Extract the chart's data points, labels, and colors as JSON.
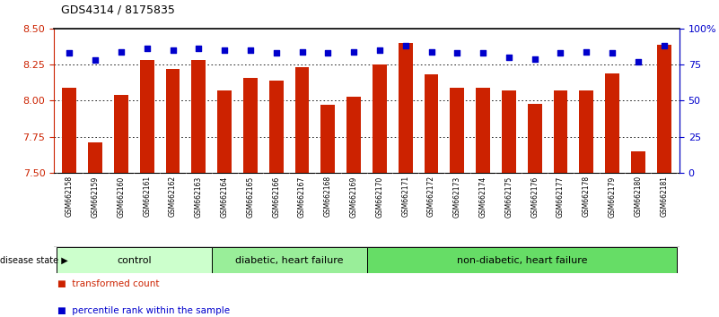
{
  "title": "GDS4314 / 8175835",
  "samples": [
    "GSM662158",
    "GSM662159",
    "GSM662160",
    "GSM662161",
    "GSM662162",
    "GSM662163",
    "GSM662164",
    "GSM662165",
    "GSM662166",
    "GSM662167",
    "GSM662168",
    "GSM662169",
    "GSM662170",
    "GSM662171",
    "GSM662172",
    "GSM662173",
    "GSM662174",
    "GSM662175",
    "GSM662176",
    "GSM662177",
    "GSM662178",
    "GSM662179",
    "GSM662180",
    "GSM662181"
  ],
  "bar_values": [
    8.09,
    7.71,
    8.04,
    8.28,
    8.22,
    8.28,
    8.07,
    8.16,
    8.14,
    8.23,
    7.97,
    8.03,
    8.25,
    8.4,
    8.18,
    8.09,
    8.09,
    8.07,
    7.98,
    8.07,
    8.07,
    8.19,
    7.65,
    8.39
  ],
  "percentile_values": [
    83,
    78,
    84,
    86,
    85,
    86,
    85,
    85,
    83,
    84,
    83,
    84,
    85,
    88,
    84,
    83,
    83,
    80,
    79,
    83,
    84,
    83,
    77,
    88
  ],
  "bar_color": "#cc2200",
  "percentile_color": "#0000cc",
  "ylim_left": [
    7.5,
    8.5
  ],
  "ylim_right": [
    0,
    100
  ],
  "yticks_left": [
    7.5,
    7.75,
    8.0,
    8.25,
    8.5
  ],
  "yticks_right": [
    0,
    25,
    50,
    75,
    100
  ],
  "ytick_labels_right": [
    "0",
    "25",
    "50",
    "75",
    "100%"
  ],
  "grid_values": [
    7.75,
    8.0,
    8.25
  ],
  "groups": [
    {
      "label": "control",
      "start": 0,
      "end": 5,
      "color": "#ccffcc"
    },
    {
      "label": "diabetic, heart failure",
      "start": 6,
      "end": 11,
      "color": "#99ee99"
    },
    {
      "label": "non-diabetic, heart failure",
      "start": 12,
      "end": 23,
      "color": "#66dd66"
    }
  ],
  "disease_state_label": "disease state",
  "legend": [
    {
      "label": "transformed count",
      "color": "#cc2200"
    },
    {
      "label": "percentile rank within the sample",
      "color": "#0000cc"
    }
  ],
  "bg_color": "#ffffff",
  "label_area_color": "#cccccc",
  "title_fontsize": 9,
  "tick_fontsize": 8,
  "sample_fontsize": 5.5,
  "group_fontsize": 8,
  "legend_fontsize": 7.5
}
